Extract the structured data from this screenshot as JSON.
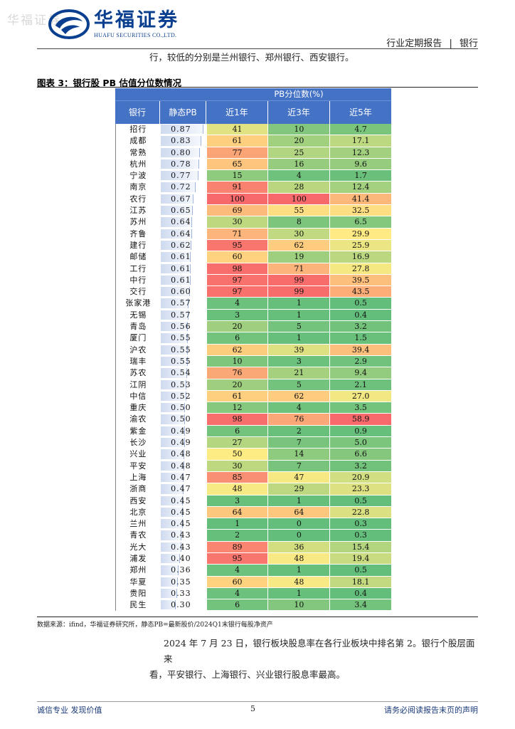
{
  "watermark": "华福证券",
  "logo": {
    "cn": "华福证券",
    "en": "HUAFU SECURITIES CO.,LTD."
  },
  "header": {
    "report_type": "行业定期报告",
    "separator": "|",
    "industry": "银行"
  },
  "intro_text": "行，较低的分别是兰州银行、郑州银行、西安银行。",
  "figure_title": "图表 3：银行股 PB 估值分位数情况",
  "table": {
    "group_header": "PB分位数(%)",
    "columns": [
      "银行",
      "静态PB",
      "近1年",
      "近3年",
      "近5年"
    ],
    "rows": [
      {
        "bank": "招行",
        "pb": "0.87",
        "y1": "41",
        "y3": "10",
        "y5": "4.7"
      },
      {
        "bank": "成都",
        "pb": "0.83",
        "y1": "61",
        "y3": "20",
        "y5": "17.1"
      },
      {
        "bank": "常熟",
        "pb": "0.80",
        "y1": "77",
        "y3": "25",
        "y5": "12.3"
      },
      {
        "bank": "杭州",
        "pb": "0.78",
        "y1": "65",
        "y3": "16",
        "y5": "9.6"
      },
      {
        "bank": "宁波",
        "pb": "0.77",
        "y1": "15",
        "y3": "4",
        "y5": "1.7"
      },
      {
        "bank": "南京",
        "pb": "0.72",
        "y1": "91",
        "y3": "28",
        "y5": "12.4"
      },
      {
        "bank": "农行",
        "pb": "0.67",
        "y1": "100",
        "y3": "100",
        "y5": "41.4"
      },
      {
        "bank": "江苏",
        "pb": "0.65",
        "y1": "69",
        "y3": "55",
        "y5": "32.5"
      },
      {
        "bank": "苏州",
        "pb": "0.64",
        "y1": "30",
        "y3": "8",
        "y5": "6.5"
      },
      {
        "bank": "齐鲁",
        "pb": "0.64",
        "y1": "71",
        "y3": "30",
        "y5": "29.9"
      },
      {
        "bank": "建行",
        "pb": "0.62",
        "y1": "95",
        "y3": "62",
        "y5": "25.9"
      },
      {
        "bank": "邮储",
        "pb": "0.61",
        "y1": "60",
        "y3": "19",
        "y5": "16.9"
      },
      {
        "bank": "工行",
        "pb": "0.61",
        "y1": "98",
        "y3": "71",
        "y5": "27.8"
      },
      {
        "bank": "中行",
        "pb": "0.61",
        "y1": "97",
        "y3": "99",
        "y5": "39.5"
      },
      {
        "bank": "交行",
        "pb": "0.60",
        "y1": "97",
        "y3": "99",
        "y5": "43.5"
      },
      {
        "bank": "张家港",
        "pb": "0.57",
        "y1": "4",
        "y3": "1",
        "y5": "0.5"
      },
      {
        "bank": "无锡",
        "pb": "0.57",
        "y1": "3",
        "y3": "1",
        "y5": "0.4"
      },
      {
        "bank": "青岛",
        "pb": "0.56",
        "y1": "20",
        "y3": "5",
        "y5": "3.2"
      },
      {
        "bank": "厦门",
        "pb": "0.55",
        "y1": "6",
        "y3": "1",
        "y5": "1.5"
      },
      {
        "bank": "沪农",
        "pb": "0.55",
        "y1": "62",
        "y3": "39",
        "y5": "39.4"
      },
      {
        "bank": "瑞丰",
        "pb": "0.55",
        "y1": "10",
        "y3": "3",
        "y5": "2.9"
      },
      {
        "bank": "苏农",
        "pb": "0.54",
        "y1": "76",
        "y3": "21",
        "y5": "9.4"
      },
      {
        "bank": "江阴",
        "pb": "0.53",
        "y1": "20",
        "y3": "5",
        "y5": "2.1"
      },
      {
        "bank": "中信",
        "pb": "0.52",
        "y1": "61",
        "y3": "62",
        "y5": "27.0"
      },
      {
        "bank": "重庆",
        "pb": "0.50",
        "y1": "12",
        "y3": "4",
        "y5": "3.5"
      },
      {
        "bank": "渝农",
        "pb": "0.50",
        "y1": "98",
        "y3": "76",
        "y5": "58.9"
      },
      {
        "bank": "紫金",
        "pb": "0.49",
        "y1": "6",
        "y3": "2",
        "y5": "0.9"
      },
      {
        "bank": "长沙",
        "pb": "0.49",
        "y1": "27",
        "y3": "7",
        "y5": "5.0"
      },
      {
        "bank": "兴业",
        "pb": "0.48",
        "y1": "50",
        "y3": "14",
        "y5": "6.6"
      },
      {
        "bank": "平安",
        "pb": "0.48",
        "y1": "30",
        "y3": "7",
        "y5": "3.2"
      },
      {
        "bank": "上海",
        "pb": "0.47",
        "y1": "85",
        "y3": "47",
        "y5": "20.9"
      },
      {
        "bank": "浙商",
        "pb": "0.47",
        "y1": "48",
        "y3": "29",
        "y5": "23.3"
      },
      {
        "bank": "西安",
        "pb": "0.45",
        "y1": "3",
        "y3": "1",
        "y5": "0.5"
      },
      {
        "bank": "北京",
        "pb": "0.45",
        "y1": "64",
        "y3": "64",
        "y5": "22.8"
      },
      {
        "bank": "兰州",
        "pb": "0.45",
        "y1": "1",
        "y3": "0",
        "y5": "0.3"
      },
      {
        "bank": "青农",
        "pb": "0.43",
        "y1": "2",
        "y3": "0",
        "y5": "0.3"
      },
      {
        "bank": "光大",
        "pb": "0.43",
        "y1": "89",
        "y3": "36",
        "y5": "15.4"
      },
      {
        "bank": "浦发",
        "pb": "0.40",
        "y1": "95",
        "y3": "48",
        "y5": "19.4"
      },
      {
        "bank": "郑州",
        "pb": "0.36",
        "y1": "4",
        "y3": "1",
        "y5": "0.5"
      },
      {
        "bank": "华夏",
        "pb": "0.35",
        "y1": "60",
        "y3": "48",
        "y5": "18.1"
      },
      {
        "bank": "贵阳",
        "pb": "0.33",
        "y1": "4",
        "y3": "1",
        "y5": "0.4"
      },
      {
        "bank": "民生",
        "pb": "0.30",
        "y1": "6",
        "y3": "10",
        "y5": "3.4"
      }
    ]
  },
  "source_note": "数据来源：ifind，华福证券研究所，静态PB=最新股价/2024Q1末银行每股净资产",
  "paragraph": {
    "line1": "2024 年 7 月 23 日，银行板块股息率在各行业板块中排名第 2。银行个股层面来",
    "line2": "看，平安银行、上海银行、兴业银行股息率最高。"
  },
  "footer": {
    "left": "诚信专业  发现价值",
    "page": "5",
    "right": "请务必阅读报告末页的声明"
  },
  "colors": {
    "header_blue": "#4472c4",
    "brand_blue": "#0a3f8f",
    "heat_low": "#63be7b",
    "heat_mid": "#ffeb84",
    "heat_high": "#f8696b"
  }
}
